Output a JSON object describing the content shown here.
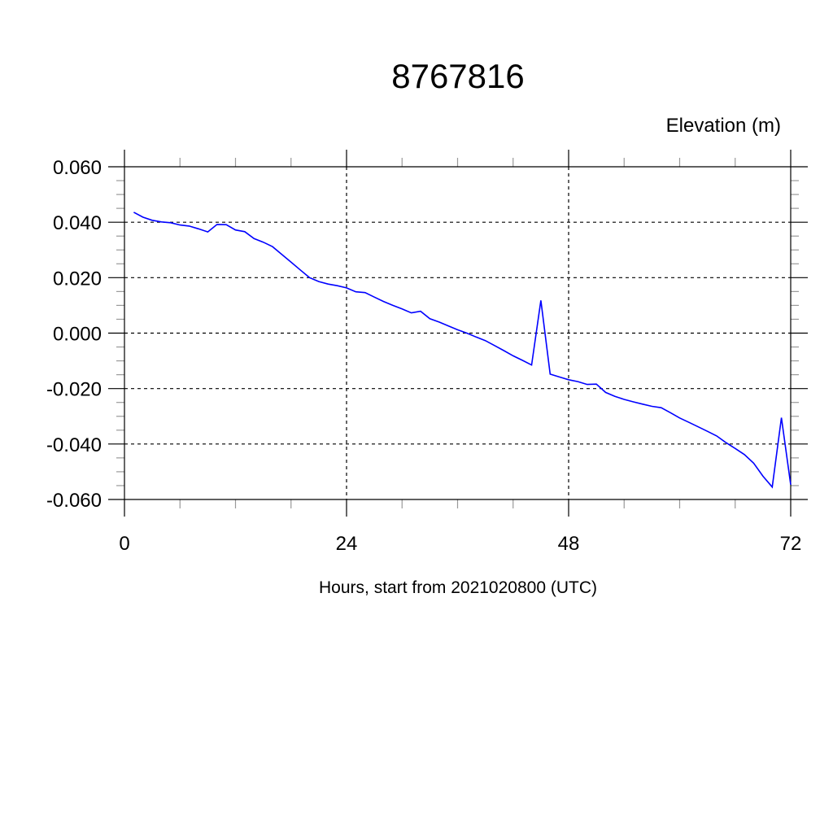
{
  "chart_data": {
    "type": "line",
    "title": "8767816",
    "subtitle": "Elevation (m)",
    "xlabel": "Hours, start from 2021020800 (UTC)",
    "ylabel": "",
    "xlim": [
      0,
      72
    ],
    "ylim": [
      -0.06,
      0.06
    ],
    "x_ticks": [
      0,
      24,
      48,
      72
    ],
    "x_tick_labels": [
      "0",
      "24",
      "48",
      "72"
    ],
    "x_minor_step": 6,
    "y_ticks": [
      0.06,
      0.04,
      0.02,
      0.0,
      -0.02,
      -0.04,
      -0.06
    ],
    "y_tick_labels": [
      "0.060",
      "0.040",
      "0.020",
      "0.000",
      "-0.020",
      "-0.040",
      "-0.060"
    ],
    "y_minor_step": 0.005,
    "grid": true,
    "line_color": "#0000ff",
    "series": [
      {
        "x": [
          1,
          2,
          3,
          4,
          5,
          6,
          7,
          8,
          9,
          10,
          11,
          12,
          13,
          14,
          15,
          16,
          17,
          18,
          19,
          20,
          21,
          22,
          23,
          24,
          25,
          26,
          27,
          28,
          29,
          30,
          31,
          32,
          33,
          34,
          35,
          36,
          37,
          38,
          39,
          40,
          41,
          42,
          43,
          44,
          45,
          46,
          47,
          48,
          49,
          50,
          51,
          52,
          53,
          54,
          55,
          56,
          57,
          58,
          59,
          60,
          61,
          62,
          63,
          64,
          65,
          66,
          67,
          68,
          69,
          70,
          71,
          72
        ],
        "values": [
          0.0436,
          0.0418,
          0.0407,
          0.0401,
          0.0398,
          0.039,
          0.0386,
          0.0376,
          0.0365,
          0.0392,
          0.0391,
          0.0372,
          0.0366,
          0.0341,
          0.0328,
          0.0312,
          0.0284,
          0.0256,
          0.0228,
          0.02,
          0.0186,
          0.0177,
          0.0171,
          0.0163,
          0.0149,
          0.0146,
          0.013,
          0.0114,
          0.01,
          0.0087,
          0.0073,
          0.0079,
          0.0052,
          0.004,
          0.0026,
          0.0012,
          0.0,
          -0.0014,
          -0.0027,
          -0.0045,
          -0.0063,
          -0.0082,
          -0.0098,
          -0.0115,
          0.0118,
          -0.0148,
          -0.0158,
          -0.0168,
          -0.0175,
          -0.0185,
          -0.0184,
          -0.0214,
          -0.0228,
          -0.0239,
          -0.0248,
          -0.0256,
          -0.0264,
          -0.0269,
          -0.0287,
          -0.0306,
          -0.0322,
          -0.0338,
          -0.0354,
          -0.0371,
          -0.0395,
          -0.0416,
          -0.0438,
          -0.0469,
          -0.0516,
          -0.0555,
          -0.0305,
          -0.0547
        ]
      }
    ]
  }
}
